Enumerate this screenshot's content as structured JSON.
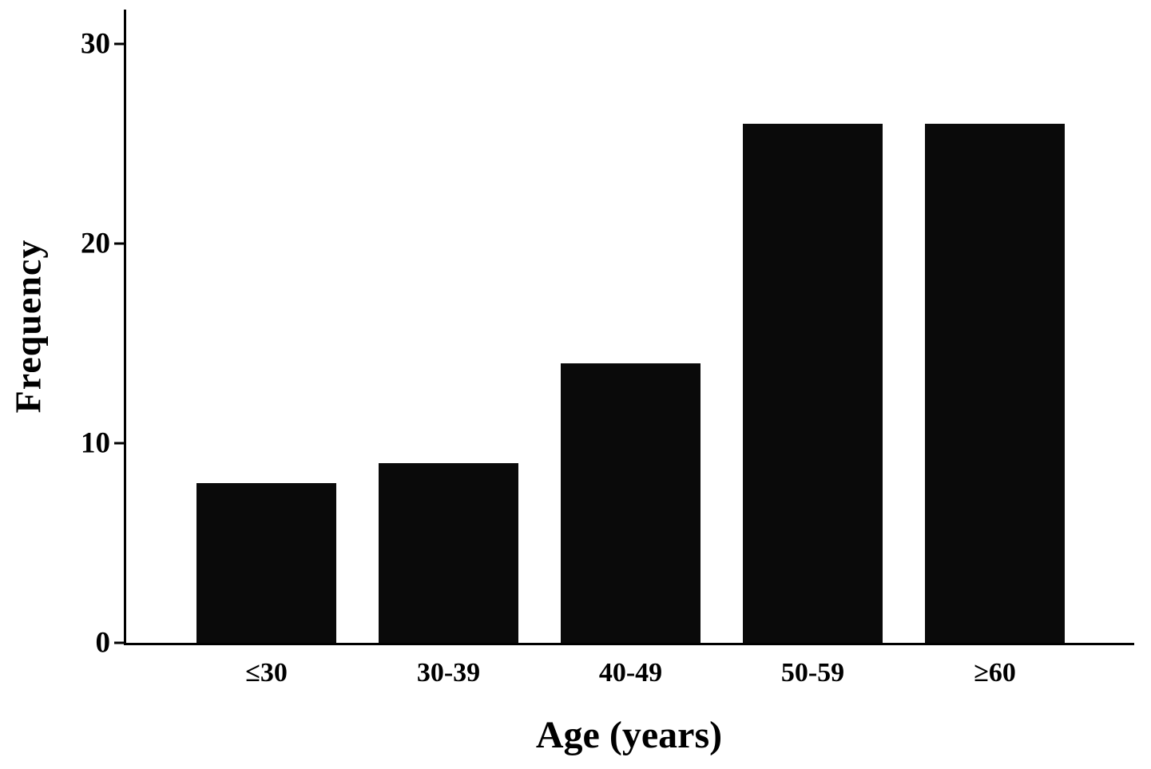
{
  "chart_data": {
    "type": "bar",
    "title": "",
    "categories": [
      "≤30",
      "30-39",
      "40-49",
      "50-59",
      "≥60"
    ],
    "values": [
      8,
      9,
      14,
      26,
      26
    ],
    "xlabel": "Age (years)",
    "ylabel": "Frequency",
    "ylim": [
      0,
      30
    ],
    "yticks": [
      0,
      10,
      20,
      30
    ],
    "bar_color": "#0a0a0a",
    "background": "#ffffff",
    "grid": false,
    "legend": false
  }
}
